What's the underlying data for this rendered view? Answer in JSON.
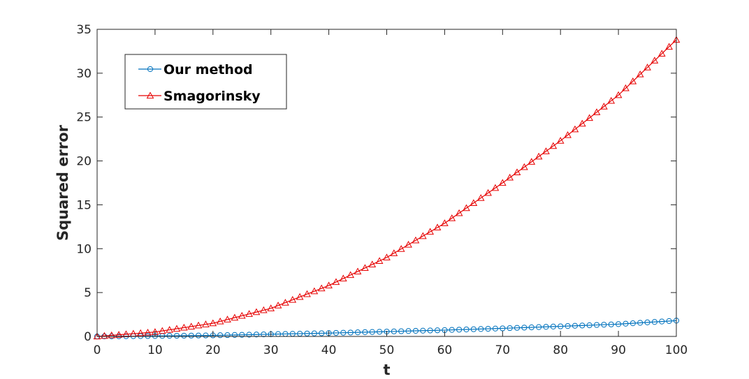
{
  "chart_data": {
    "type": "line",
    "title": "",
    "xlabel": "t",
    "ylabel": "Squared error",
    "xlim": [
      0,
      100
    ],
    "ylim": [
      0,
      35
    ],
    "xticks": [
      "0",
      "10",
      "20",
      "30",
      "40",
      "50",
      "60",
      "70",
      "80",
      "90",
      "100"
    ],
    "yticks": [
      "0",
      "5",
      "10",
      "15",
      "20",
      "25",
      "30",
      "35"
    ],
    "grid": false,
    "legend_position": "top-left",
    "series": [
      {
        "name": "Our method",
        "color": "#0072BD",
        "marker": "circle",
        "x": [
          0,
          10,
          20,
          30,
          40,
          50,
          60,
          70,
          80,
          90,
          100
        ],
        "y": [
          0,
          0.05,
          0.12,
          0.25,
          0.38,
          0.55,
          0.72,
          0.92,
          1.15,
          1.4,
          1.8
        ]
      },
      {
        "name": "Smagorinsky",
        "color": "#E60000",
        "marker": "triangle",
        "x": [
          0,
          10,
          20,
          30,
          40,
          50,
          60,
          70,
          80,
          90,
          100
        ],
        "y": [
          0,
          0.5,
          1.5,
          3.2,
          5.8,
          9.0,
          12.9,
          17.5,
          22.3,
          27.5,
          33.8
        ]
      }
    ]
  }
}
